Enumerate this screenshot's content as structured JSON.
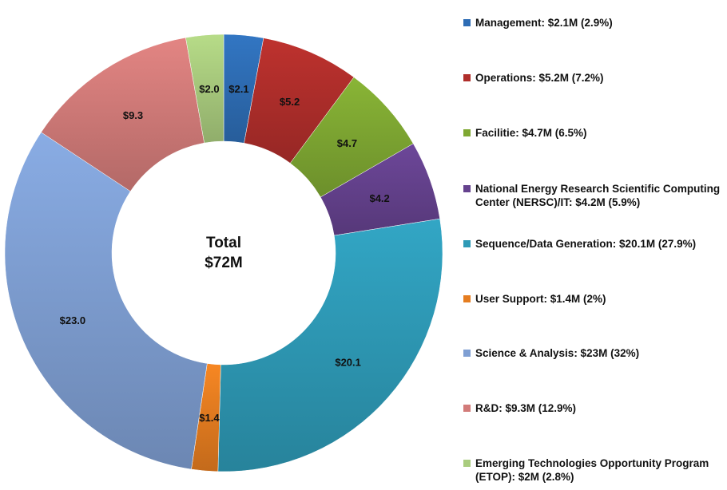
{
  "chart_data": {
    "type": "pie",
    "variant": "donut",
    "center_label_line1": "Total",
    "center_label_line2": "$72M",
    "slices": [
      {
        "value": 2.1,
        "label": "$2.1",
        "legend": "Management: $2.1M (2.9%)",
        "color": "#2e6db5"
      },
      {
        "value": 5.2,
        "label": "$5.2",
        "legend": "Operations: $5.2M (7.2%)",
        "color": "#b02e2b"
      },
      {
        "value": 4.7,
        "label": "$4.7",
        "legend": "Facilitie: $4.7M (6.5%)",
        "color": "#7fa832"
      },
      {
        "value": 4.2,
        "label": "$4.2",
        "legend": "National Energy Research Scientific Computing Center (NERSC)/IT: $4.2M (5.9%)",
        "color": "#65428e"
      },
      {
        "value": 20.1,
        "label": "$20.1",
        "legend": "Sequence/Data Generation: $20.1M (27.9%)",
        "color": "#2e9ab6"
      },
      {
        "value": 1.4,
        "label": "$1.4",
        "legend": "User Support: $1.4M (2%)",
        "color": "#e57d20"
      },
      {
        "value": 23.0,
        "label": "$23.0",
        "legend": "Science & Analysis: $23M (32%)",
        "color": "#7f9fd3"
      },
      {
        "value": 9.3,
        "label": "$9.3",
        "legend": "R&D: $9.3M (12.9%)",
        "color": "#d27b79"
      },
      {
        "value": 2.0,
        "label": "$2.0",
        "legend": "Emerging Technologies Opportunity Program (ETOP): $2M (2.8%)",
        "color": "#a9cc7e"
      }
    ],
    "legend_position": "right"
  }
}
